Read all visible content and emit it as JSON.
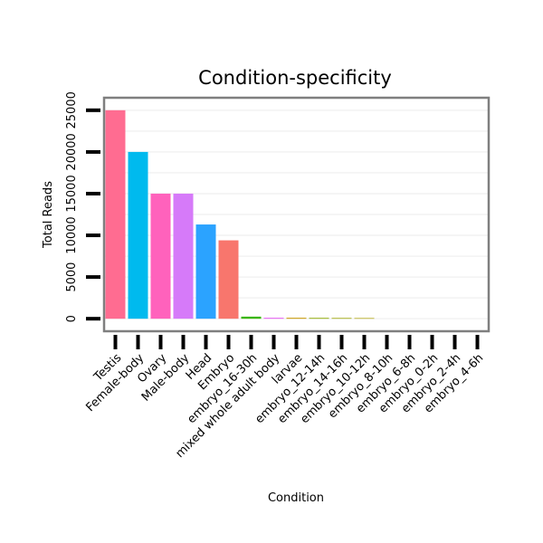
{
  "chart_data": {
    "type": "bar",
    "title": "Condition-specificity",
    "xlabel": "Condition",
    "ylabel": "Total Reads",
    "ylim": [
      -1500,
      26500
    ],
    "yticks": [
      0,
      5000,
      10000,
      15000,
      20000,
      25000
    ],
    "ytick_labels": [
      "0",
      "5000",
      "10000",
      "15000",
      "20000",
      "25000"
    ],
    "grid": true,
    "legend": "none",
    "categories": [
      "Testis",
      "Female-body",
      "Ovary",
      "Male-body",
      "Head",
      "Embryo",
      "embryo_16-30h",
      "mixed whole adult body",
      "larvae",
      "embryo_12-14h",
      "embryo_14-16h",
      "embryo_10-12h",
      "embryo_8-10h",
      "embryo_6-8h",
      "embryo_0-2h",
      "embryo_2-4h",
      "embryo_4-6h"
    ],
    "values": [
      25000,
      20000,
      15000,
      15000,
      11300,
      9400,
      250,
      120,
      110,
      100,
      90,
      80,
      0,
      0,
      0,
      0,
      0
    ],
    "colors": [
      "#FF6C91",
      "#00BAEE",
      "#FF62BC",
      "#D67AF9",
      "#2BA3FF",
      "#F8766D",
      "#39B600",
      "#E76BF3",
      "#C79800",
      "#8EAA00",
      "#9CA700",
      "#ADA200",
      "#00BF7D",
      "#00BFC4",
      "#00B0F6",
      "#9590FF",
      "#FF6A98"
    ]
  }
}
